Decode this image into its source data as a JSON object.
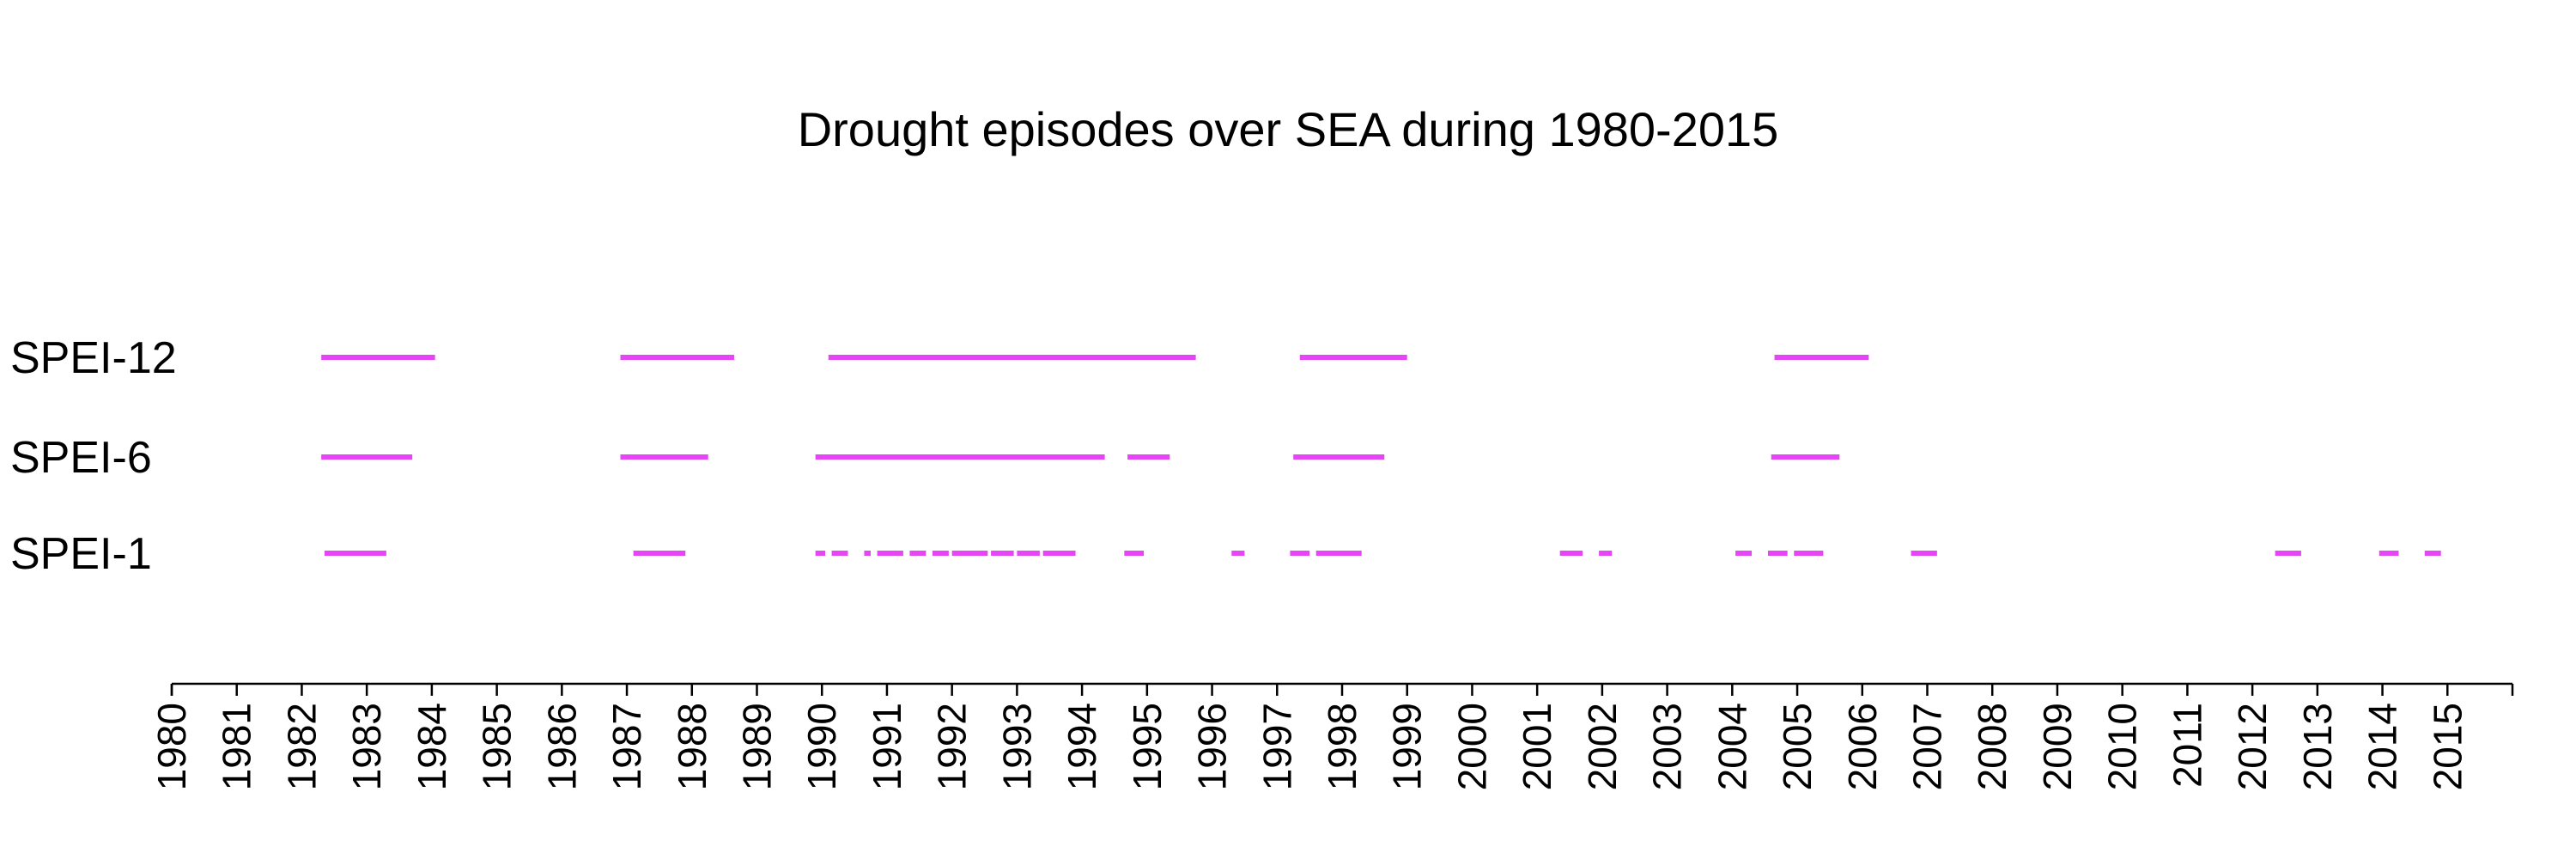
{
  "chart_data": {
    "type": "timeline",
    "title": "Drought episodes over SEA during 1980-2015",
    "x_range": [
      1980,
      2016
    ],
    "x_ticks": [
      1980,
      1981,
      1982,
      1983,
      1984,
      1985,
      1986,
      1987,
      1988,
      1989,
      1990,
      1991,
      1992,
      1993,
      1994,
      1995,
      1996,
      1997,
      1998,
      1999,
      2000,
      2001,
      2002,
      2003,
      2004,
      2005,
      2006,
      2007,
      2008,
      2009,
      2010,
      2011,
      2012,
      2013,
      2014,
      2015
    ],
    "tick_labels": [
      "1980",
      "1981",
      "1982",
      "1983",
      "1984",
      "1985",
      "1986",
      "1987",
      "1988",
      "1989",
      "1990",
      "1991",
      "1992",
      "1993",
      "1994",
      "1995",
      "1996",
      "1997",
      "1998",
      "1999",
      "2000",
      "2001",
      "2002",
      "2003",
      "2004",
      "2005",
      "2006",
      "2007",
      "2008",
      "2009",
      "2010",
      "2011",
      "2012",
      "2013",
      "2014",
      "2015"
    ],
    "bar_color": "#e645f5",
    "rows": [
      {
        "label": "SPEI-12",
        "episodes": [
          [
            1982.3,
            1984.05
          ],
          [
            1986.9,
            1988.65
          ],
          [
            1990.1,
            1995.75
          ],
          [
            1997.35,
            1999.0
          ],
          [
            2004.65,
            2006.1
          ]
        ]
      },
      {
        "label": "SPEI-6",
        "episodes": [
          [
            1982.3,
            1983.7
          ],
          [
            1986.9,
            1988.25
          ],
          [
            1989.9,
            1994.35
          ],
          [
            1994.7,
            1995.35
          ],
          [
            1997.25,
            1998.65
          ],
          [
            2004.6,
            2005.65
          ]
        ]
      },
      {
        "label": "SPEI-1",
        "episodes": [
          [
            1982.35,
            1983.3
          ],
          [
            1987.1,
            1987.9
          ],
          [
            1989.9,
            1990.05
          ],
          [
            1990.15,
            1990.4
          ],
          [
            1990.65,
            1990.75
          ],
          [
            1990.85,
            1991.25
          ],
          [
            1991.35,
            1991.6
          ],
          [
            1991.7,
            1991.95
          ],
          [
            1992.0,
            1992.55
          ],
          [
            1992.6,
            1992.95
          ],
          [
            1993.0,
            1993.35
          ],
          [
            1993.4,
            1993.9
          ],
          [
            1994.65,
            1994.95
          ],
          [
            1996.3,
            1996.5
          ],
          [
            1997.2,
            1997.5
          ],
          [
            1997.6,
            1998.3
          ],
          [
            2001.35,
            2001.7
          ],
          [
            2001.95,
            2002.15
          ],
          [
            2004.05,
            2004.3
          ],
          [
            2004.55,
            2004.85
          ],
          [
            2004.95,
            2005.4
          ],
          [
            2006.75,
            2007.15
          ],
          [
            2012.35,
            2012.75
          ],
          [
            2013.95,
            2014.25
          ],
          [
            2014.65,
            2014.9
          ]
        ]
      }
    ],
    "xlabel": "",
    "ylabel": "",
    "grid": false,
    "legend": "none"
  }
}
